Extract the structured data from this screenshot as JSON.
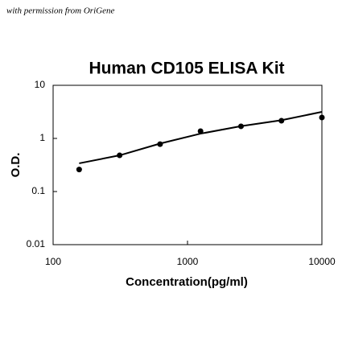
{
  "note_text": "with permission from OriGene",
  "chart_data": {
    "type": "scatter",
    "title": "Human CD105 ELISA Kit",
    "x_label": "Concentration(pg/ml)",
    "y_label": "O.D.",
    "xscale": "log",
    "yscale": "log",
    "xlim": [
      100,
      10000
    ],
    "ylim": [
      0.01,
      10
    ],
    "xticks": [
      100,
      1000,
      10000
    ],
    "yticks": [
      0.01,
      0.1,
      1,
      10
    ],
    "series": [
      {
        "style": "markers",
        "color": "#000000",
        "x": [
          156.25,
          312.5,
          625,
          1250,
          2500,
          5000,
          10000
        ],
        "values": [
          0.26,
          0.48,
          0.78,
          1.37,
          1.69,
          2.15,
          2.48
        ]
      },
      {
        "style": "line",
        "color": "#000000",
        "x": [
          156.25,
          312.5,
          625,
          1250,
          2500,
          5000,
          10000
        ],
        "values": [
          0.34,
          0.48,
          0.8,
          1.23,
          1.7,
          2.2,
          3.16
        ]
      }
    ]
  }
}
